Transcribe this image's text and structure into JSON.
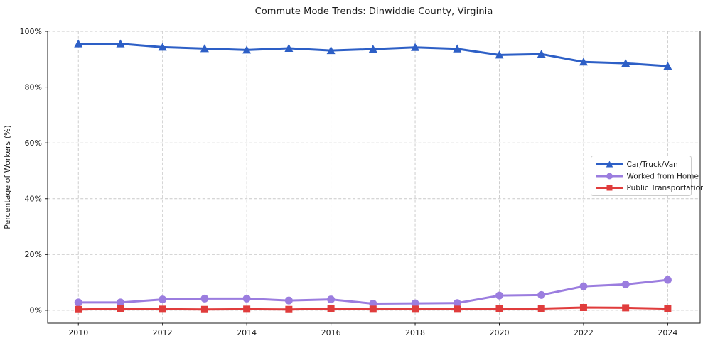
{
  "chart": {
    "title": "Commute Mode Trends: Dinwiddie County, Virginia"
  },
  "chart_data": {
    "type": "line",
    "title": "Commute Mode Trends: Dinwiddie County, Virginia",
    "xlabel": "",
    "ylabel": "Percentage of Workers (%)",
    "x": [
      2010,
      2011,
      2012,
      2013,
      2014,
      2015,
      2016,
      2017,
      2018,
      2019,
      2020,
      2021,
      2022,
      2023,
      2024
    ],
    "x_ticks": [
      2010,
      2012,
      2014,
      2016,
      2018,
      2020,
      2022,
      2024
    ],
    "xlim": [
      2009.27,
      2024.77
    ],
    "y_ticks": [
      0,
      20,
      40,
      60,
      80,
      100
    ],
    "y_tick_suffix": "%",
    "ylim": [
      -4.6,
      100
    ],
    "grid": true,
    "grid_style": "dashed",
    "legend_position": "center right",
    "series": [
      {
        "name": "Car/Truck/Van",
        "color": "#2d5fc6",
        "marker": "triangle",
        "values": [
          95.5,
          95.5,
          94.3,
          93.8,
          93.3,
          93.9,
          93.1,
          93.6,
          94.2,
          93.7,
          91.5,
          91.8,
          89.0,
          88.5,
          87.5
        ]
      },
      {
        "name": "Worked from Home",
        "color": "#9b7ddf",
        "marker": "circle",
        "values": [
          2.8,
          2.8,
          3.9,
          4.2,
          4.2,
          3.5,
          3.9,
          2.4,
          2.5,
          2.6,
          5.3,
          5.5,
          8.6,
          9.3,
          10.9
        ]
      },
      {
        "name": "Public Transportation",
        "color": "#e03c3c",
        "marker": "square",
        "values": [
          0.3,
          0.5,
          0.4,
          0.3,
          0.4,
          0.3,
          0.5,
          0.4,
          0.4,
          0.4,
          0.5,
          0.6,
          1.0,
          0.9,
          0.6
        ]
      }
    ],
    "colors": {
      "grid": "#c9c9c9",
      "spine": "#1a1a1a",
      "legend_border": "#cccccc",
      "text": "#1a1a1a"
    }
  }
}
